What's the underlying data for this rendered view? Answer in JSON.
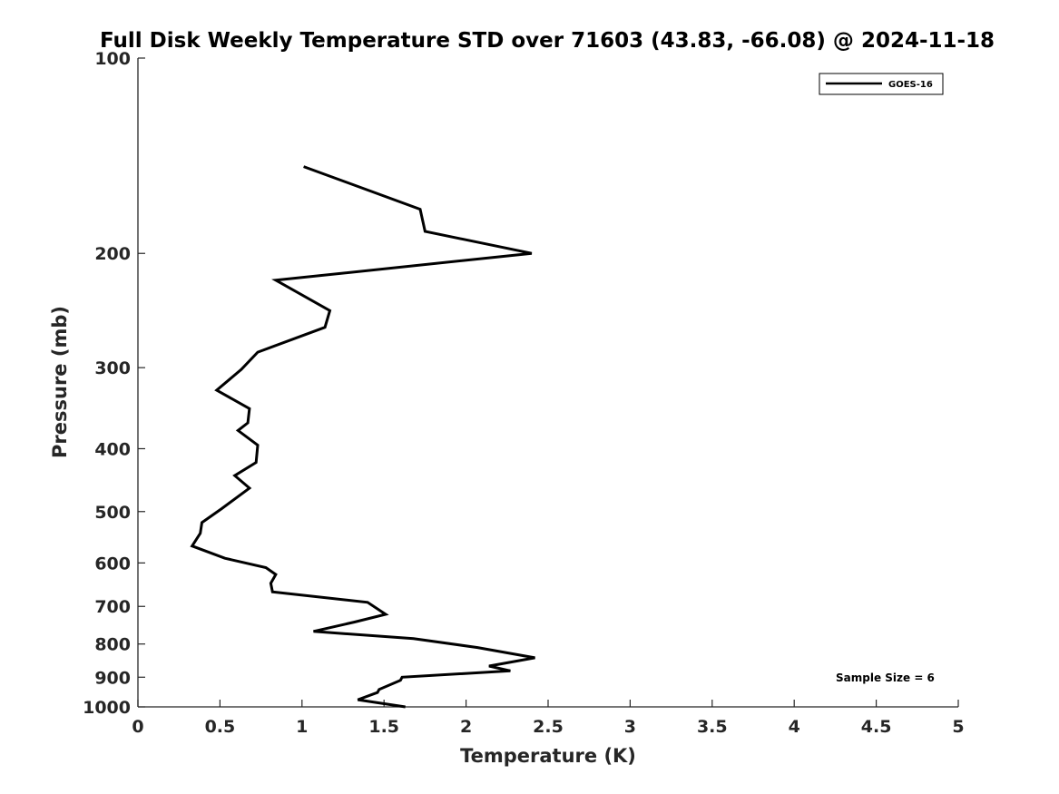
{
  "chart_data": {
    "type": "line",
    "title": "Full Disk Weekly Temperature STD over 71603 (43.83, -66.08) @ 2024-11-18",
    "xlabel": "Temperature (K)",
    "ylabel": "Pressure (mb)",
    "xlim": [
      0,
      5
    ],
    "ylim": [
      100,
      1000
    ],
    "yscale": "log",
    "xticks": [
      "0",
      "0.5",
      "1",
      "1.5",
      "2",
      "2.5",
      "3",
      "3.5",
      "4",
      "4.5",
      "5"
    ],
    "yticks": [
      "100",
      "200",
      "300",
      "400",
      "500",
      "600",
      "700",
      "800",
      "900",
      "1000"
    ],
    "legend": {
      "position": "top-right",
      "entries": [
        "GOES-16"
      ]
    },
    "annotation": "Sample Size = 6",
    "series": [
      {
        "name": "GOES-16",
        "color": "#000000",
        "x": [
          1.01,
          1.72,
          1.75,
          2.4,
          0.84,
          1.17,
          1.14,
          0.73,
          0.63,
          0.48,
          0.68,
          0.67,
          0.61,
          0.73,
          0.72,
          0.59,
          0.68,
          0.51,
          0.39,
          0.38,
          0.33,
          0.53,
          0.78,
          0.84,
          0.81,
          0.82,
          1.4,
          1.51,
          1.32,
          1.07,
          1.68,
          2.07,
          2.42,
          2.14,
          2.27,
          1.61,
          1.6,
          1.47,
          1.46,
          1.34,
          1.63
        ],
        "y": [
          147,
          171,
          185,
          200,
          220,
          245,
          260,
          284,
          302,
          325,
          347,
          365,
          375,
          395,
          420,
          440,
          460,
          495,
          520,
          540,
          565,
          590,
          610,
          625,
          645,
          665,
          690,
          720,
          740,
          765,
          785,
          810,
          840,
          865,
          880,
          900,
          910,
          940,
          950,
          975,
          1000
        ]
      }
    ]
  }
}
